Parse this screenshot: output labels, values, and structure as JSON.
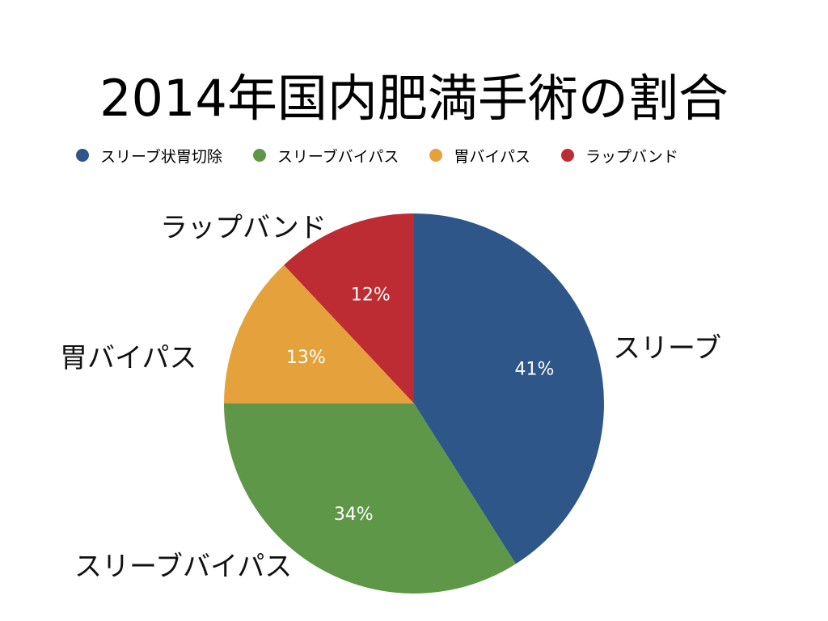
{
  "title": "2014年国内肥満手術の割合",
  "chart_data": {
    "type": "pie",
    "title": "2014年国内肥満手術の割合",
    "legend_position": "top",
    "slices": [
      {
        "name": "スリーブ状胃切除",
        "value": 41,
        "label": "41%",
        "outside_label": "スリーブ",
        "color": "#2e5689"
      },
      {
        "name": "スリーブバイパス",
        "value": 34,
        "label": "34%",
        "outside_label": "スリーブバイパス",
        "color": "#5e9747"
      },
      {
        "name": "胃バイパス",
        "value": 13,
        "label": "13%",
        "outside_label": "胃バイパス",
        "color": "#e5a23c"
      },
      {
        "name": "ラップバンド",
        "value": 12,
        "label": "12%",
        "outside_label": "ラップバンド",
        "color": "#bd2c32"
      }
    ]
  }
}
